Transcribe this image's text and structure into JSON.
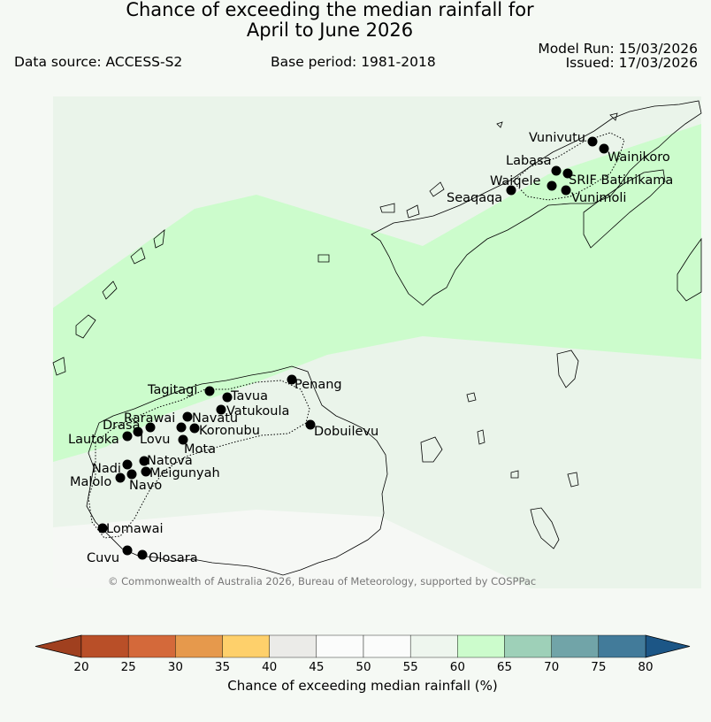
{
  "title_line1": "Chance of exceeding the median rainfall for",
  "title_line2": "April to June 2026",
  "data_source": "Data source: ACCESS-S2",
  "base_period": "Base period: 1981-2018",
  "model_run": "Model Run: 15/03/2026",
  "issued": "Issued: 17/03/2026",
  "copyright": "© Commonwealth of Australia 2026, Bureau of Meteorology, supported by COSPPac",
  "colors": {
    "background": "#f5f9f4",
    "map_base": "#eaf4ea",
    "band_60_65": "#ccfccc",
    "band_45_50": "#f6f8f5",
    "marker": "#000000",
    "coast": "#000000"
  },
  "towns": [
    {
      "name": "Vunivutu"
    },
    {
      "name": "Wainikoro"
    },
    {
      "name": "Labasa"
    },
    {
      "name": "Waiqele"
    },
    {
      "name": "SRIF Batinikama"
    },
    {
      "name": "Seaqaqa"
    },
    {
      "name": "Vunimoli"
    },
    {
      "name": "Tagitagi"
    },
    {
      "name": "Penang"
    },
    {
      "name": "Tavua"
    },
    {
      "name": "Vatukoula"
    },
    {
      "name": "Rarawai"
    },
    {
      "name": "Navatu"
    },
    {
      "name": "Drasa"
    },
    {
      "name": "Koronubu"
    },
    {
      "name": "Dobuilevu"
    },
    {
      "name": "Lautoka"
    },
    {
      "name": "Lovu"
    },
    {
      "name": "Mota"
    },
    {
      "name": "Natova"
    },
    {
      "name": "Nadi"
    },
    {
      "name": "Meigunyah"
    },
    {
      "name": "Malolo"
    },
    {
      "name": "Navo"
    },
    {
      "name": "Lomawai"
    },
    {
      "name": "Cuvu"
    },
    {
      "name": "Olosara"
    }
  ],
  "colorbar": {
    "label": "Chance of exceeding median rainfall (%)",
    "ticks": [
      "20",
      "25",
      "30",
      "35",
      "40",
      "45",
      "50",
      "55",
      "60",
      "65",
      "70",
      "75",
      "80"
    ],
    "colors": [
      "#a0401f",
      "#b94f28",
      "#d4693a",
      "#e6994c",
      "#fed06b",
      "#ebebe8",
      "#fbfcfb",
      "#fbfcfb",
      "#eef6ee",
      "#ccfccc",
      "#9ed0b8",
      "#71a4a8",
      "#427b9a",
      "#1c5686"
    ],
    "under_color": "#a0401f",
    "over_color": "#1c5686"
  }
}
